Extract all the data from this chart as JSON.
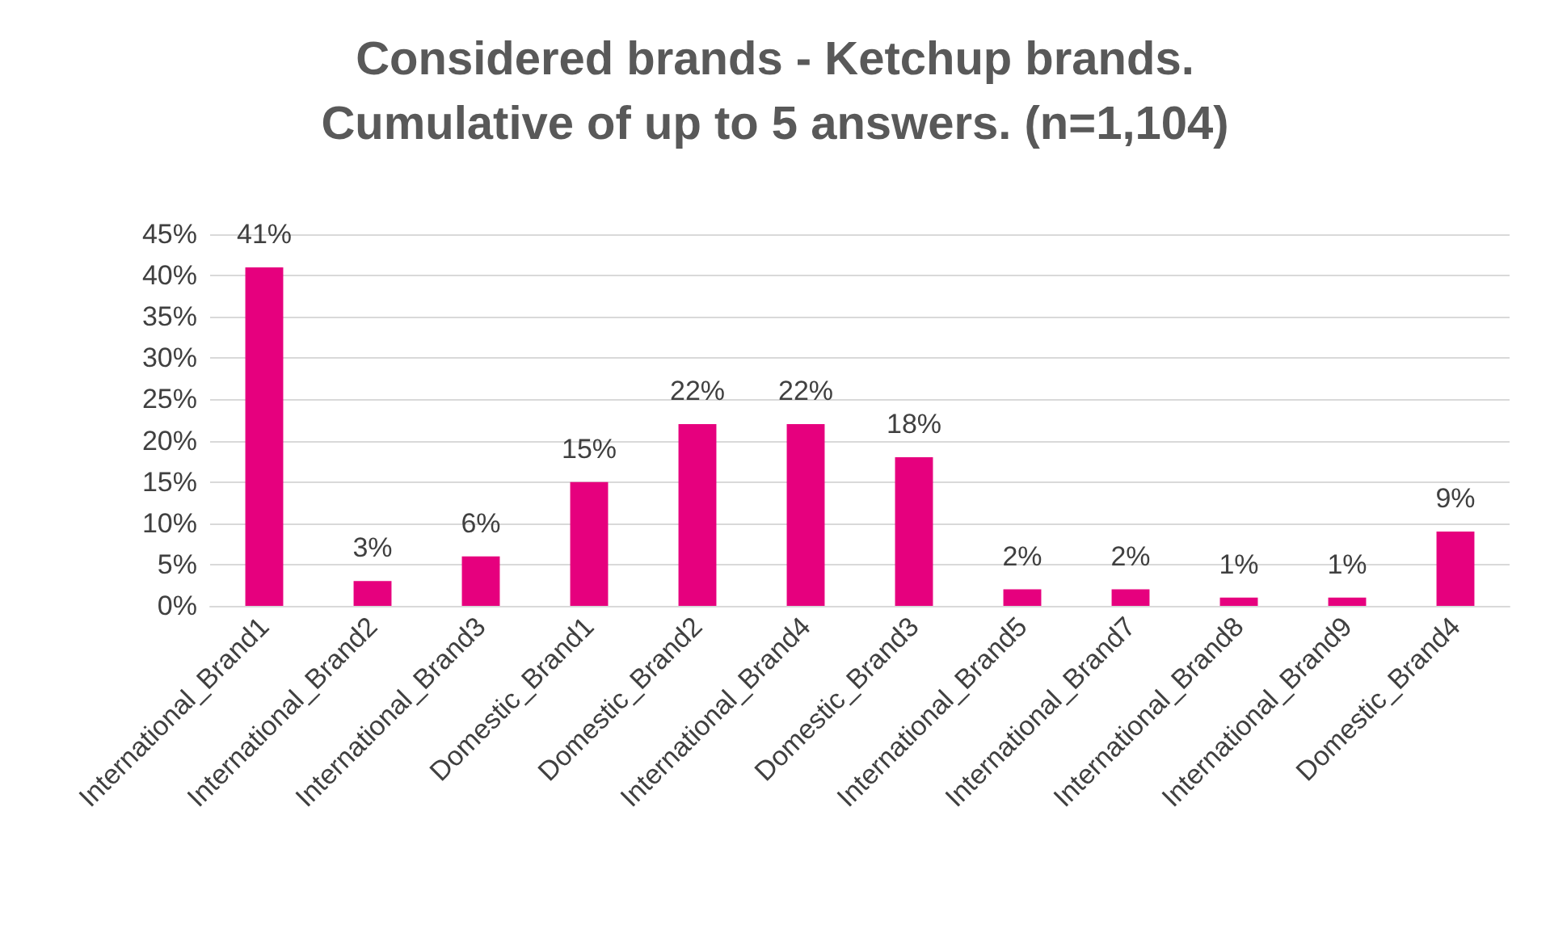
{
  "chart_data": {
    "type": "bar",
    "title": "Considered brands - Ketchup brands.\nCumulative of up to 5 answers. (n=1,104)",
    "categories": [
      "International_Brand1",
      "International_Brand2",
      "International_Brand3",
      "Domestic_Brand1",
      "Domestic_Brand2",
      "International_Brand4",
      "Domestic_Brand3",
      "International_Brand5",
      "International_Brand7",
      "International_Brand8",
      "International_Brand9",
      "Domestic_Brand4"
    ],
    "values": [
      41,
      3,
      6,
      15,
      22,
      22,
      18,
      2,
      2,
      1,
      1,
      9
    ],
    "color": "#e6007e",
    "ylim": [
      0,
      45
    ],
    "yticks": [
      {
        "value": 0,
        "label": "0%"
      },
      {
        "value": 5,
        "label": "5%"
      },
      {
        "value": 10,
        "label": "10%"
      },
      {
        "value": 15,
        "label": "15%"
      },
      {
        "value": 20,
        "label": "20%"
      },
      {
        "value": 25,
        "label": "25%"
      },
      {
        "value": 30,
        "label": "30%"
      },
      {
        "value": 35,
        "label": "35%"
      },
      {
        "value": 40,
        "label": "40%"
      },
      {
        "value": 45,
        "label": "45%"
      }
    ],
    "value_labels": [
      "41%",
      "3%",
      "6%",
      "15%",
      "22%",
      "22%",
      "18%",
      "2%",
      "2%",
      "1%",
      "1%",
      "9%"
    ],
    "grid": "y"
  }
}
